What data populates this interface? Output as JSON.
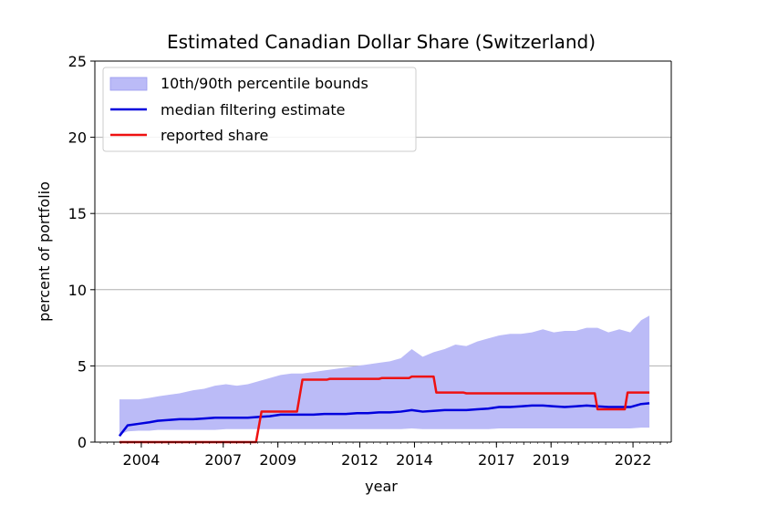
{
  "chart_data": {
    "type": "line",
    "title": "Estimated Canadian Dollar Share (Switzerland)",
    "xlabel": "year",
    "ylabel": "percent of portfolio",
    "xlim": [
      2002.3,
      2023.4
    ],
    "ylim": [
      0,
      25
    ],
    "x_ticks": [
      2004,
      2007,
      2009,
      2012,
      2014,
      2017,
      2019,
      2022
    ],
    "x_tick_labels": [
      "2004",
      "2007",
      "2009",
      "2012",
      "2014",
      "2017",
      "2019",
      "2022"
    ],
    "y_ticks": [
      0,
      5,
      10,
      15,
      20,
      25
    ],
    "y_tick_labels": [
      "0",
      "5",
      "10",
      "15",
      "20",
      "25"
    ],
    "grid": "y",
    "legend_position": "upper-left",
    "colors": {
      "band": "#bbbbf7",
      "median": "#0000dd",
      "reported": "#ee1111",
      "grid": "#b0b0b0"
    },
    "band": {
      "name": "10th/90th percentile bounds",
      "x": [
        2003.2,
        2003.5,
        2003.9,
        2004.3,
        2004.6,
        2005.0,
        2005.4,
        2005.9,
        2006.3,
        2006.7,
        2007.1,
        2007.5,
        2007.9,
        2008.3,
        2008.7,
        2009.1,
        2009.5,
        2009.9,
        2010.3,
        2010.7,
        2011.1,
        2011.5,
        2011.9,
        2012.3,
        2012.7,
        2013.1,
        2013.5,
        2013.9,
        2014.3,
        2014.7,
        2015.1,
        2015.5,
        2015.9,
        2016.3,
        2016.7,
        2017.1,
        2017.5,
        2017.9,
        2018.3,
        2018.7,
        2019.1,
        2019.5,
        2019.9,
        2020.3,
        2020.7,
        2021.1,
        2021.5,
        2021.9,
        2022.3,
        2022.6
      ],
      "upper": [
        2.8,
        2.8,
        2.8,
        2.9,
        3.0,
        3.1,
        3.2,
        3.4,
        3.5,
        3.7,
        3.8,
        3.7,
        3.8,
        4.0,
        4.2,
        4.4,
        4.5,
        4.5,
        4.6,
        4.7,
        4.8,
        4.9,
        5.0,
        5.1,
        5.2,
        5.3,
        5.5,
        6.1,
        5.6,
        5.9,
        6.1,
        6.4,
        6.3,
        6.6,
        6.8,
        7.0,
        7.1,
        7.1,
        7.2,
        7.4,
        7.2,
        7.3,
        7.3,
        7.5,
        7.5,
        7.2,
        7.4,
        7.2,
        8.0,
        8.3
      ],
      "lower": [
        0.5,
        0.7,
        0.75,
        0.75,
        0.8,
        0.8,
        0.8,
        0.8,
        0.8,
        0.8,
        0.85,
        0.85,
        0.85,
        0.85,
        0.85,
        0.85,
        0.85,
        0.85,
        0.85,
        0.85,
        0.85,
        0.85,
        0.85,
        0.85,
        0.85,
        0.85,
        0.85,
        0.9,
        0.85,
        0.85,
        0.85,
        0.85,
        0.85,
        0.85,
        0.85,
        0.9,
        0.9,
        0.9,
        0.9,
        0.9,
        0.9,
        0.9,
        0.9,
        0.9,
        0.9,
        0.9,
        0.9,
        0.9,
        0.95,
        0.95
      ]
    },
    "series": [
      {
        "name": "median filtering estimate",
        "x": [
          2003.2,
          2003.5,
          2003.9,
          2004.3,
          2004.6,
          2005.0,
          2005.4,
          2005.9,
          2006.3,
          2006.7,
          2007.1,
          2007.5,
          2007.9,
          2008.3,
          2008.7,
          2009.1,
          2009.5,
          2009.9,
          2010.3,
          2010.7,
          2011.1,
          2011.5,
          2011.9,
          2012.3,
          2012.7,
          2013.1,
          2013.5,
          2013.9,
          2014.3,
          2014.7,
          2015.1,
          2015.5,
          2015.9,
          2016.3,
          2016.7,
          2017.1,
          2017.5,
          2017.9,
          2018.3,
          2018.7,
          2019.1,
          2019.5,
          2019.9,
          2020.3,
          2020.7,
          2021.1,
          2021.5,
          2021.9,
          2022.3,
          2022.6
        ],
        "values": [
          0.4,
          1.1,
          1.2,
          1.3,
          1.4,
          1.45,
          1.5,
          1.5,
          1.55,
          1.6,
          1.6,
          1.6,
          1.6,
          1.65,
          1.7,
          1.8,
          1.8,
          1.8,
          1.8,
          1.85,
          1.85,
          1.85,
          1.9,
          1.9,
          1.95,
          1.95,
          2.0,
          2.1,
          2.0,
          2.05,
          2.1,
          2.1,
          2.1,
          2.15,
          2.2,
          2.3,
          2.3,
          2.35,
          2.4,
          2.4,
          2.35,
          2.3,
          2.35,
          2.4,
          2.35,
          2.3,
          2.3,
          2.3,
          2.5,
          2.55
        ]
      },
      {
        "name": "reported share",
        "x": [
          2003.2,
          2008.2,
          2008.4,
          2009.7,
          2009.9,
          2010.8,
          2010.9,
          2012.7,
          2012.8,
          2013.8,
          2013.9,
          2014.7,
          2014.8,
          2015.8,
          2015.9,
          2020.6,
          2020.7,
          2021.7,
          2021.8,
          2022.6
        ],
        "values": [
          0,
          0,
          2.0,
          2.0,
          4.1,
          4.1,
          4.15,
          4.15,
          4.2,
          4.2,
          4.3,
          4.3,
          3.25,
          3.25,
          3.2,
          3.2,
          2.15,
          2.15,
          3.25,
          3.25
        ]
      }
    ]
  }
}
